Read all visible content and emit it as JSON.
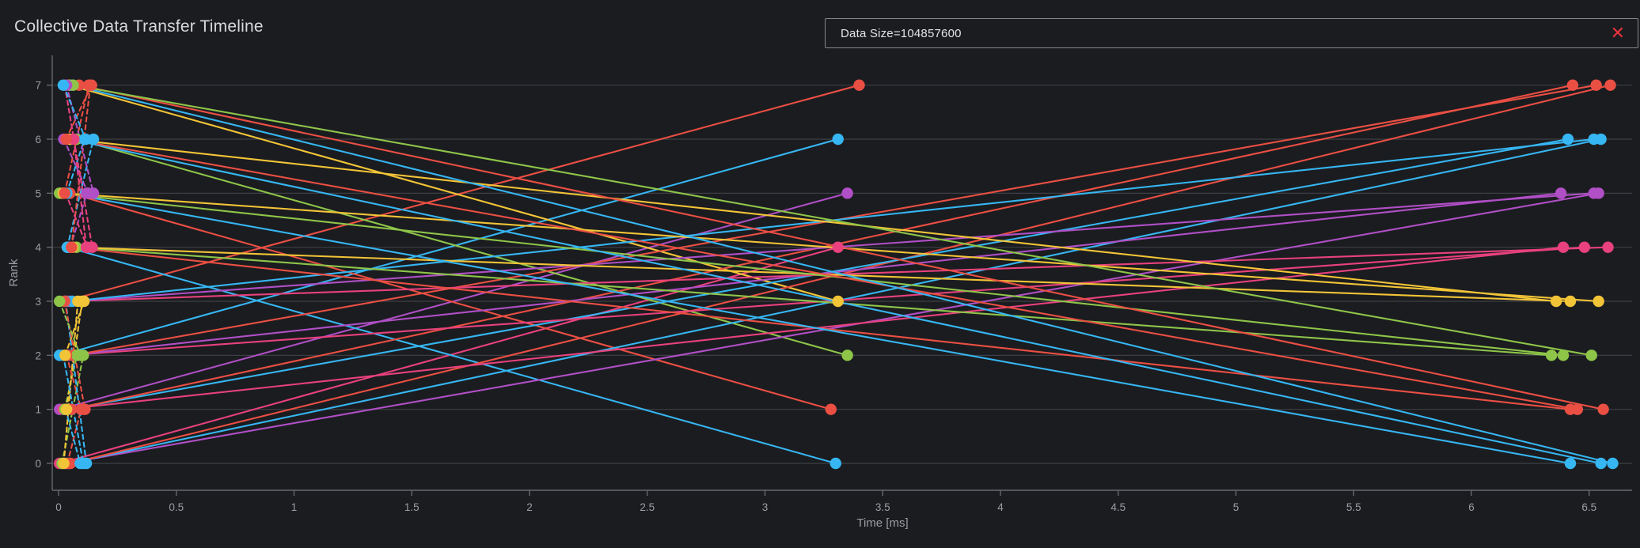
{
  "header": {
    "title": "Collective Data Transfer Timeline"
  },
  "chip": {
    "label": "Data Size=104857600",
    "close_glyph": "✕",
    "close_color": "#e8323e",
    "border_color": "#85878c"
  },
  "theme": {
    "background": "#1b1c20",
    "gridline": "#3d3f44",
    "axis_line": "#66686d",
    "tick_text": "#9b9da2",
    "title_text": "#d8d9da"
  },
  "chart_data": {
    "type": "scatter",
    "subtype": "communication-timeline",
    "title": "Collective Data Transfer Timeline",
    "xlabel": "Time [ms]",
    "ylabel": "Rank",
    "xlim": [
      -0.035,
      6.72
    ],
    "ylim": [
      -0.5,
      7.55
    ],
    "x_ticks": [
      0,
      0.5,
      1,
      1.5,
      2,
      2.5,
      3,
      3.5,
      4,
      4.5,
      5,
      5.5,
      6,
      6.5
    ],
    "y_ticks": [
      0,
      1,
      2,
      3,
      4,
      5,
      6,
      7
    ],
    "grid": "horizontal-only",
    "legend_position": "none",
    "marker_radius_px": 7.2,
    "rank_colors": {
      "0": "#36b6f2",
      "1": "#ea4f43",
      "2": "#8ec549",
      "3": "#f2c437",
      "4": "#e8417d",
      "5": "#b04fc6",
      "6": "#36b6f2",
      "7": "#ea4f43"
    },
    "color_rule": "each transfer line and its endpoint markers are colored by destination rank",
    "line_styles": {
      "intra-node": "dashed",
      "inter-node": "solid"
    },
    "transfers": [
      {
        "src": 0,
        "dst": 1,
        "send_ms": 0.037,
        "recv_ms": 0.096,
        "link": "intra-node"
      },
      {
        "src": 0,
        "dst": 2,
        "send_ms": 0.015,
        "recv_ms": 0.105,
        "link": "intra-node"
      },
      {
        "src": 0,
        "dst": 3,
        "send_ms": 0.022,
        "recv_ms": 0.082,
        "link": "intra-node"
      },
      {
        "src": 1,
        "dst": 0,
        "send_ms": 0.03,
        "recv_ms": 0.092,
        "link": "intra-node"
      },
      {
        "src": 1,
        "dst": 2,
        "send_ms": 0.026,
        "recv_ms": 0.078,
        "link": "intra-node"
      },
      {
        "src": 1,
        "dst": 3,
        "send_ms": 0.034,
        "recv_ms": 0.1,
        "link": "intra-node"
      },
      {
        "src": 2,
        "dst": 0,
        "send_ms": 0.02,
        "recv_ms": 0.105,
        "link": "intra-node"
      },
      {
        "src": 2,
        "dst": 1,
        "send_ms": 0.034,
        "recv_ms": 0.096,
        "link": "intra-node"
      },
      {
        "src": 2,
        "dst": 3,
        "send_ms": 0.028,
        "recv_ms": 0.108,
        "link": "intra-node"
      },
      {
        "src": 3,
        "dst": 0,
        "send_ms": 0.03,
        "recv_ms": 0.118,
        "link": "intra-node"
      },
      {
        "src": 3,
        "dst": 1,
        "send_ms": 0.026,
        "recv_ms": 0.112,
        "link": "intra-node"
      },
      {
        "src": 3,
        "dst": 2,
        "send_ms": 0.004,
        "recv_ms": 0.092,
        "link": "intra-node"
      },
      {
        "src": 4,
        "dst": 5,
        "send_ms": 0.05,
        "recv_ms": 0.12,
        "link": "intra-node"
      },
      {
        "src": 4,
        "dst": 6,
        "send_ms": 0.037,
        "recv_ms": 0.148,
        "link": "intra-node"
      },
      {
        "src": 4,
        "dst": 7,
        "send_ms": 0.055,
        "recv_ms": 0.135,
        "link": "intra-node"
      },
      {
        "src": 5,
        "dst": 4,
        "send_ms": 0.03,
        "recv_ms": 0.122,
        "link": "intra-node"
      },
      {
        "src": 5,
        "dst": 6,
        "send_ms": 0.035,
        "recv_ms": 0.11,
        "link": "intra-node"
      },
      {
        "src": 5,
        "dst": 7,
        "send_ms": 0.026,
        "recv_ms": 0.128,
        "link": "intra-node"
      },
      {
        "src": 6,
        "dst": 4,
        "send_ms": 0.065,
        "recv_ms": 0.118,
        "link": "intra-node"
      },
      {
        "src": 6,
        "dst": 5,
        "send_ms": 0.022,
        "recv_ms": 0.126,
        "link": "intra-node"
      },
      {
        "src": 6,
        "dst": 7,
        "send_ms": 0.032,
        "recv_ms": 0.14,
        "link": "intra-node"
      },
      {
        "src": 7,
        "dst": 4,
        "send_ms": 0.026,
        "recv_ms": 0.143,
        "link": "intra-node"
      },
      {
        "src": 7,
        "dst": 5,
        "send_ms": 0.034,
        "recv_ms": 0.148,
        "link": "intra-node"
      },
      {
        "src": 7,
        "dst": 6,
        "send_ms": 0.02,
        "recv_ms": 0.115,
        "link": "intra-node"
      },
      {
        "src": 0,
        "dst": 4,
        "send_ms": 0.004,
        "recv_ms": 3.31,
        "link": "inter-node"
      },
      {
        "src": 1,
        "dst": 5,
        "send_ms": 0.004,
        "recv_ms": 3.35,
        "link": "inter-node"
      },
      {
        "src": 2,
        "dst": 6,
        "send_ms": 0.004,
        "recv_ms": 3.31,
        "link": "inter-node"
      },
      {
        "src": 3,
        "dst": 7,
        "send_ms": 0.026,
        "recv_ms": 3.4,
        "link": "inter-node"
      },
      {
        "src": 4,
        "dst": 0,
        "send_ms": 0.037,
        "recv_ms": 3.3,
        "link": "inter-node"
      },
      {
        "src": 5,
        "dst": 1,
        "send_ms": 0.048,
        "recv_ms": 3.28,
        "link": "inter-node"
      },
      {
        "src": 6,
        "dst": 2,
        "send_ms": 0.076,
        "recv_ms": 3.35,
        "link": "inter-node"
      },
      {
        "src": 7,
        "dst": 3,
        "send_ms": 0.046,
        "recv_ms": 3.31,
        "link": "inter-node"
      },
      {
        "src": 0,
        "dst": 5,
        "send_ms": 0.03,
        "recv_ms": 6.54,
        "link": "inter-node"
      },
      {
        "src": 0,
        "dst": 6,
        "send_ms": 0.042,
        "recv_ms": 6.55,
        "link": "inter-node"
      },
      {
        "src": 0,
        "dst": 7,
        "send_ms": 0.05,
        "recv_ms": 6.59,
        "link": "inter-node"
      },
      {
        "src": 1,
        "dst": 4,
        "send_ms": 0.02,
        "recv_ms": 6.39,
        "link": "inter-node"
      },
      {
        "src": 1,
        "dst": 6,
        "send_ms": 0.04,
        "recv_ms": 6.41,
        "link": "inter-node"
      },
      {
        "src": 1,
        "dst": 7,
        "send_ms": 0.055,
        "recv_ms": 6.43,
        "link": "inter-node"
      },
      {
        "src": 2,
        "dst": 4,
        "send_ms": 0.032,
        "recv_ms": 6.48,
        "link": "inter-node"
      },
      {
        "src": 2,
        "dst": 5,
        "send_ms": 0.045,
        "recv_ms": 6.38,
        "link": "inter-node"
      },
      {
        "src": 2,
        "dst": 7,
        "send_ms": 0.06,
        "recv_ms": 6.53,
        "link": "inter-node"
      },
      {
        "src": 3,
        "dst": 4,
        "send_ms": 0.04,
        "recv_ms": 6.58,
        "link": "inter-node"
      },
      {
        "src": 3,
        "dst": 5,
        "send_ms": 0.052,
        "recv_ms": 6.52,
        "link": "inter-node"
      },
      {
        "src": 3,
        "dst": 6,
        "send_ms": 0.058,
        "recv_ms": 6.52,
        "link": "inter-node"
      },
      {
        "src": 4,
        "dst": 1,
        "send_ms": 0.048,
        "recv_ms": 6.42,
        "link": "inter-node"
      },
      {
        "src": 4,
        "dst": 2,
        "send_ms": 0.076,
        "recv_ms": 6.34,
        "link": "inter-node"
      },
      {
        "src": 4,
        "dst": 3,
        "send_ms": 0.06,
        "recv_ms": 6.42,
        "link": "inter-node"
      },
      {
        "src": 5,
        "dst": 0,
        "send_ms": 0.03,
        "recv_ms": 6.42,
        "link": "inter-node"
      },
      {
        "src": 5,
        "dst": 2,
        "send_ms": 0.004,
        "recv_ms": 6.39,
        "link": "inter-node"
      },
      {
        "src": 5,
        "dst": 3,
        "send_ms": 0.02,
        "recv_ms": 6.54,
        "link": "inter-node"
      },
      {
        "src": 6,
        "dst": 0,
        "send_ms": 0.046,
        "recv_ms": 6.55,
        "link": "inter-node"
      },
      {
        "src": 6,
        "dst": 1,
        "send_ms": 0.052,
        "recv_ms": 6.45,
        "link": "inter-node"
      },
      {
        "src": 6,
        "dst": 3,
        "send_ms": 0.046,
        "recv_ms": 6.36,
        "link": "inter-node"
      },
      {
        "src": 7,
        "dst": 0,
        "send_ms": 0.058,
        "recv_ms": 6.6,
        "link": "inter-node"
      },
      {
        "src": 7,
        "dst": 1,
        "send_ms": 0.087,
        "recv_ms": 6.56,
        "link": "inter-node"
      },
      {
        "src": 7,
        "dst": 2,
        "send_ms": 0.062,
        "recv_ms": 6.51,
        "link": "inter-node"
      }
    ]
  }
}
